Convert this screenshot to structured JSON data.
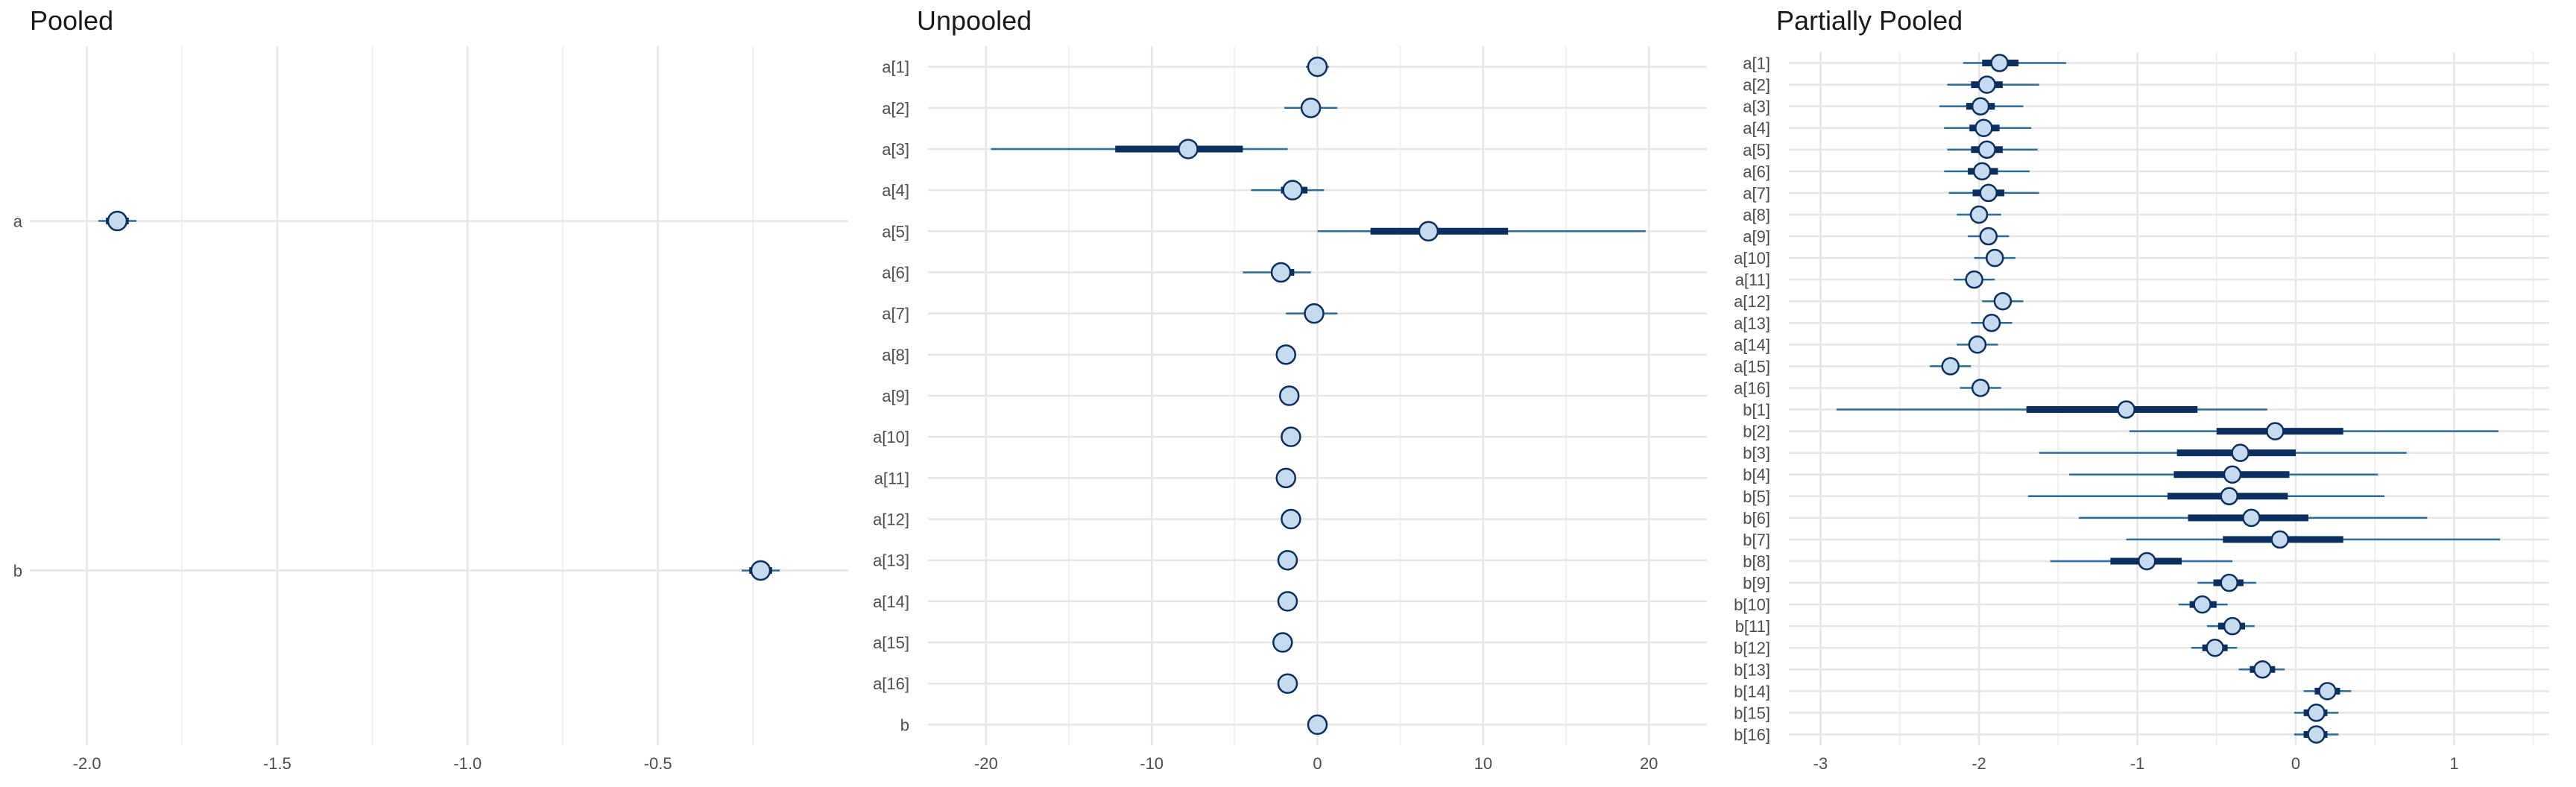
{
  "colors": {
    "interval_outer": "#2b6c9a",
    "interval_inner": "#0b2f5e",
    "point_fill": "#c6dbef",
    "point_stroke": "#0b2f5e",
    "grid_major": "#e6e6e6",
    "grid_minor": "#f0f0f0"
  },
  "chart_data": [
    {
      "type": "interval",
      "title": "Pooled",
      "xlim": [
        -2.15,
        0.0
      ],
      "xticks": [
        -2.0,
        -1.5,
        -1.0,
        -0.5
      ],
      "xtick_labels": [
        "-2.0",
        "-1.5",
        "-1.0",
        "-0.5"
      ],
      "ylim": [
        0.5,
        2.5
      ],
      "grid": true,
      "series": [
        {
          "label": "a",
          "mean": -1.92,
          "inner": [
            -1.95,
            -1.89
          ],
          "outer": [
            -1.97,
            -1.87
          ]
        },
        {
          "label": "b",
          "mean": -0.23,
          "inner": [
            -0.26,
            -0.2
          ],
          "outer": [
            -0.28,
            -0.18
          ]
        }
      ]
    },
    {
      "type": "interval",
      "title": "Unpooled",
      "xlim": [
        -23.5,
        23.5
      ],
      "xticks": [
        -20,
        -10,
        0,
        10,
        20
      ],
      "xtick_labels": [
        "-20",
        "-10",
        "0",
        "10",
        "20"
      ],
      "ylim": [
        0.5,
        17.5
      ],
      "grid": true,
      "series": [
        {
          "label": "a[1]",
          "mean": 0.0,
          "inner": [
            -0.3,
            0.3
          ],
          "outer": [
            -0.7,
            0.7
          ]
        },
        {
          "label": "a[2]",
          "mean": -0.4,
          "inner": [
            -0.8,
            0.0
          ],
          "outer": [
            -2.0,
            1.2
          ]
        },
        {
          "label": "a[3]",
          "mean": -7.8,
          "inner": [
            -12.2,
            -4.5
          ],
          "outer": [
            -19.7,
            -1.8
          ]
        },
        {
          "label": "a[4]",
          "mean": -1.5,
          "inner": [
            -2.2,
            -0.6
          ],
          "outer": [
            -4.0,
            0.4
          ]
        },
        {
          "label": "a[5]",
          "mean": 6.7,
          "inner": [
            3.2,
            11.5
          ],
          "outer": [
            0.0,
            19.8
          ]
        },
        {
          "label": "a[6]",
          "mean": -2.2,
          "inner": [
            -2.8,
            -1.4
          ],
          "outer": [
            -4.5,
            -0.4
          ]
        },
        {
          "label": "a[7]",
          "mean": -0.2,
          "inner": [
            -0.6,
            0.0
          ],
          "outer": [
            -1.9,
            1.2
          ]
        },
        {
          "label": "a[8]",
          "mean": -1.9,
          "inner": [
            -2.1,
            -1.7
          ],
          "outer": [
            -2.3,
            -1.5
          ]
        },
        {
          "label": "a[9]",
          "mean": -1.7,
          "inner": [
            -1.9,
            -1.5
          ],
          "outer": [
            -2.1,
            -1.3
          ]
        },
        {
          "label": "a[10]",
          "mean": -1.6,
          "inner": [
            -1.8,
            -1.4
          ],
          "outer": [
            -2.0,
            -1.2
          ]
        },
        {
          "label": "a[11]",
          "mean": -1.9,
          "inner": [
            -2.1,
            -1.7
          ],
          "outer": [
            -2.3,
            -1.5
          ]
        },
        {
          "label": "a[12]",
          "mean": -1.6,
          "inner": [
            -1.8,
            -1.4
          ],
          "outer": [
            -2.0,
            -1.2
          ]
        },
        {
          "label": "a[13]",
          "mean": -1.8,
          "inner": [
            -2.0,
            -1.6
          ],
          "outer": [
            -2.2,
            -1.4
          ]
        },
        {
          "label": "a[14]",
          "mean": -1.8,
          "inner": [
            -2.0,
            -1.6
          ],
          "outer": [
            -2.2,
            -1.4
          ]
        },
        {
          "label": "a[15]",
          "mean": -2.1,
          "inner": [
            -2.3,
            -1.9
          ],
          "outer": [
            -2.5,
            -1.7
          ]
        },
        {
          "label": "a[16]",
          "mean": -1.8,
          "inner": [
            -2.0,
            -1.6
          ],
          "outer": [
            -2.2,
            -1.4
          ]
        },
        {
          "label": "b",
          "mean": 0.0,
          "inner": [
            -0.1,
            0.1
          ],
          "outer": [
            -0.2,
            0.2
          ]
        }
      ]
    },
    {
      "type": "interval",
      "title": "Partially Pooled",
      "xlim": [
        -3.2,
        1.6
      ],
      "xticks": [
        -3,
        -2,
        -1,
        0,
        1
      ],
      "xtick_labels": [
        "-3",
        "-2",
        "-1",
        "0",
        "1"
      ],
      "ylim": [
        0.5,
        32.5
      ],
      "grid": true,
      "series": [
        {
          "label": "a[1]",
          "mean": -1.87,
          "inner": [
            -1.98,
            -1.75
          ],
          "outer": [
            -2.1,
            -1.45
          ]
        },
        {
          "label": "a[2]",
          "mean": -1.95,
          "inner": [
            -2.05,
            -1.85
          ],
          "outer": [
            -2.2,
            -1.62
          ]
        },
        {
          "label": "a[3]",
          "mean": -1.99,
          "inner": [
            -2.08,
            -1.9
          ],
          "outer": [
            -2.25,
            -1.72
          ]
        },
        {
          "label": "a[4]",
          "mean": -1.97,
          "inner": [
            -2.06,
            -1.87
          ],
          "outer": [
            -2.22,
            -1.67
          ]
        },
        {
          "label": "a[5]",
          "mean": -1.95,
          "inner": [
            -2.05,
            -1.85
          ],
          "outer": [
            -2.2,
            -1.63
          ]
        },
        {
          "label": "a[6]",
          "mean": -1.98,
          "inner": [
            -2.07,
            -1.88
          ],
          "outer": [
            -2.22,
            -1.68
          ]
        },
        {
          "label": "a[7]",
          "mean": -1.94,
          "inner": [
            -2.04,
            -1.84
          ],
          "outer": [
            -2.19,
            -1.62
          ]
        },
        {
          "label": "a[8]",
          "mean": -2.0,
          "inner": [
            -2.05,
            -1.95
          ],
          "outer": [
            -2.14,
            -1.86
          ]
        },
        {
          "label": "a[9]",
          "mean": -1.94,
          "inner": [
            -1.99,
            -1.89
          ],
          "outer": [
            -2.07,
            -1.81
          ]
        },
        {
          "label": "a[10]",
          "mean": -1.9,
          "inner": [
            -1.95,
            -1.85
          ],
          "outer": [
            -2.03,
            -1.77
          ]
        },
        {
          "label": "a[11]",
          "mean": -2.03,
          "inner": [
            -2.08,
            -1.98
          ],
          "outer": [
            -2.16,
            -1.9
          ]
        },
        {
          "label": "a[12]",
          "mean": -1.85,
          "inner": [
            -1.9,
            -1.8
          ],
          "outer": [
            -1.98,
            -1.72
          ]
        },
        {
          "label": "a[13]",
          "mean": -1.92,
          "inner": [
            -1.97,
            -1.87
          ],
          "outer": [
            -2.05,
            -1.79
          ]
        },
        {
          "label": "a[14]",
          "mean": -2.01,
          "inner": [
            -2.06,
            -1.96
          ],
          "outer": [
            -2.14,
            -1.88
          ]
        },
        {
          "label": "a[15]",
          "mean": -2.18,
          "inner": [
            -2.23,
            -2.13
          ],
          "outer": [
            -2.31,
            -2.05
          ]
        },
        {
          "label": "a[16]",
          "mean": -1.99,
          "inner": [
            -2.04,
            -1.94
          ],
          "outer": [
            -2.12,
            -1.86
          ]
        },
        {
          "label": "b[1]",
          "mean": -1.07,
          "inner": [
            -1.7,
            -0.62
          ],
          "outer": [
            -2.9,
            -0.18
          ]
        },
        {
          "label": "b[2]",
          "mean": -0.13,
          "inner": [
            -0.5,
            0.3
          ],
          "outer": [
            -1.05,
            1.28
          ]
        },
        {
          "label": "b[3]",
          "mean": -0.35,
          "inner": [
            -0.75,
            0.0
          ],
          "outer": [
            -1.62,
            0.7
          ]
        },
        {
          "label": "b[4]",
          "mean": -0.4,
          "inner": [
            -0.77,
            -0.04
          ],
          "outer": [
            -1.43,
            0.52
          ]
        },
        {
          "label": "b[5]",
          "mean": -0.42,
          "inner": [
            -0.81,
            -0.05
          ],
          "outer": [
            -1.69,
            0.56
          ]
        },
        {
          "label": "b[6]",
          "mean": -0.28,
          "inner": [
            -0.68,
            0.08
          ],
          "outer": [
            -1.37,
            0.83
          ]
        },
        {
          "label": "b[7]",
          "mean": -0.1,
          "inner": [
            -0.46,
            0.3
          ],
          "outer": [
            -1.07,
            1.29
          ]
        },
        {
          "label": "b[8]",
          "mean": -0.94,
          "inner": [
            -1.17,
            -0.72
          ],
          "outer": [
            -1.55,
            -0.4
          ]
        },
        {
          "label": "b[9]",
          "mean": -0.42,
          "inner": [
            -0.52,
            -0.33
          ],
          "outer": [
            -0.62,
            -0.25
          ]
        },
        {
          "label": "b[10]",
          "mean": -0.59,
          "inner": [
            -0.67,
            -0.5
          ],
          "outer": [
            -0.74,
            -0.43
          ]
        },
        {
          "label": "b[11]",
          "mean": -0.4,
          "inner": [
            -0.49,
            -0.32
          ],
          "outer": [
            -0.56,
            -0.26
          ]
        },
        {
          "label": "b[12]",
          "mean": -0.51,
          "inner": [
            -0.59,
            -0.43
          ],
          "outer": [
            -0.66,
            -0.37
          ]
        },
        {
          "label": "b[13]",
          "mean": -0.21,
          "inner": [
            -0.29,
            -0.13
          ],
          "outer": [
            -0.36,
            -0.07
          ]
        },
        {
          "label": "b[14]",
          "mean": 0.2,
          "inner": [
            0.12,
            0.28
          ],
          "outer": [
            0.05,
            0.35
          ]
        },
        {
          "label": "b[15]",
          "mean": 0.13,
          "inner": [
            0.05,
            0.2
          ],
          "outer": [
            -0.01,
            0.27
          ]
        },
        {
          "label": "b[16]",
          "mean": 0.13,
          "inner": [
            0.05,
            0.2
          ],
          "outer": [
            -0.01,
            0.27
          ]
        }
      ]
    }
  ]
}
